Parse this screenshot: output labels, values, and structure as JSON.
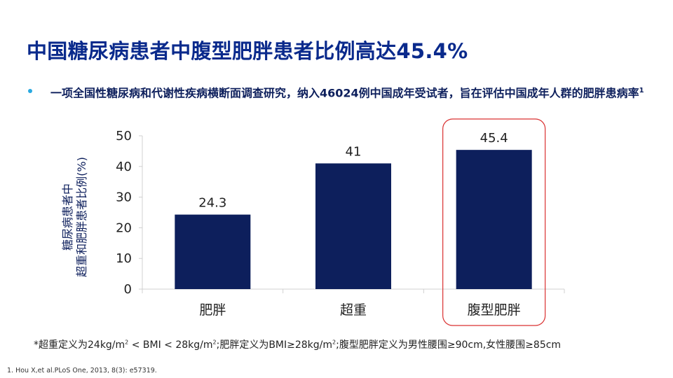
{
  "title": "中国糖尿病患者中腹型肥胖患者比例高达45.4%",
  "bullet": {
    "text": "一项全国性糖尿病和代谢性疾病横断面调查研究，纳入46024例中国成年受试者，旨在评估中国成年人群的肥胖患病率",
    "superscript": "1"
  },
  "footnote": {
    "part1": "*超重定义为24kg/m",
    "sup1": "2",
    "part2": " < BMI < 28kg/m",
    "sup2": "2",
    "part3": ";肥胖定义为BMI≥28kg/m",
    "sup3": "2",
    "part4": ";腹型肥胖定义为男性腰围≥90cm,女性腰围≥85cm"
  },
  "reference": "1. Hou X,et al.PLoS One, 2013, 8(3): e57319.",
  "chart_data": {
    "type": "bar",
    "categories": [
      "肥胖",
      "超重",
      "腹型肥胖"
    ],
    "values": [
      24.3,
      41,
      45.4
    ],
    "value_labels": [
      "24.3",
      "41",
      "45.4"
    ],
    "ylabel_line1": "糖尿病患者中",
    "ylabel_line2": "超重和肥胖患者比例(%)",
    "ylim": [
      0,
      50
    ],
    "yticks": [
      0,
      10,
      20,
      30,
      40,
      50
    ],
    "grid": false,
    "highlight_category": "腹型肥胖",
    "bar_color": "#0d1f5c",
    "highlight_color": "#d93030"
  }
}
